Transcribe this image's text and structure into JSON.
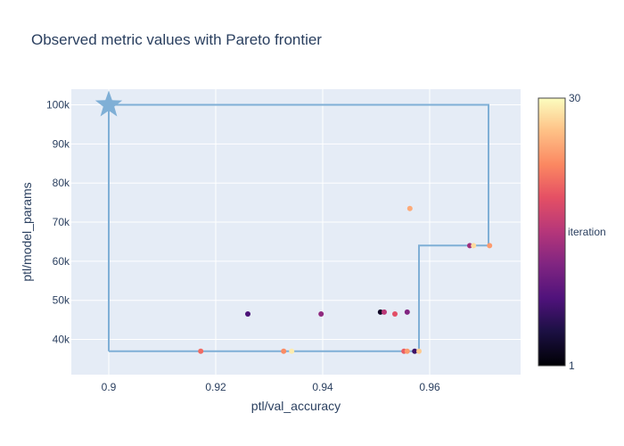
{
  "chart_data": {
    "type": "scatter",
    "title": "Observed metric values with Pareto frontier",
    "xlabel": "ptl/val_accuracy",
    "ylabel": "ptl/model_params",
    "xlim": [
      0.893,
      0.977
    ],
    "ylim": [
      31000,
      104000
    ],
    "xticks": [
      0.9,
      0.92,
      0.94,
      0.96
    ],
    "xtick_labels": [
      "0.9",
      "0.92",
      "0.94",
      "0.96"
    ],
    "yticks": [
      40000,
      50000,
      60000,
      70000,
      80000,
      90000,
      100000
    ],
    "ytick_labels": [
      "40k",
      "50k",
      "60k",
      "70k",
      "80k",
      "90k",
      "100k"
    ],
    "grid": true,
    "colorbar": {
      "title": "iteration",
      "min": 1,
      "max": 30,
      "min_label": "1",
      "max_label": "30"
    },
    "reference_point": {
      "x": 0.9,
      "y": 100000
    },
    "frontier": {
      "x": [
        0.9,
        0.958,
        0.958,
        0.971,
        0.971,
        0.9,
        0.9
      ],
      "y": [
        37000,
        37000,
        64000,
        64000,
        100000,
        100000,
        37000
      ]
    },
    "points": [
      {
        "x": 0.926,
        "y": 46500,
        "iteration": 8
      },
      {
        "x": 0.9397,
        "y": 46500,
        "iteration": 13
      },
      {
        "x": 0.9508,
        "y": 47000,
        "iteration": 3
      },
      {
        "x": 0.9515,
        "y": 47000,
        "iteration": 16
      },
      {
        "x": 0.9535,
        "y": 46500,
        "iteration": 19
      },
      {
        "x": 0.9558,
        "y": 47000,
        "iteration": 12
      },
      {
        "x": 0.9172,
        "y": 37000,
        "iteration": 21
      },
      {
        "x": 0.9327,
        "y": 37000,
        "iteration": 23
      },
      {
        "x": 0.9342,
        "y": 37000,
        "iteration": 29
      },
      {
        "x": 0.9552,
        "y": 37000,
        "iteration": 20
      },
      {
        "x": 0.9558,
        "y": 37000,
        "iteration": 24
      },
      {
        "x": 0.9572,
        "y": 37000,
        "iteration": 7
      },
      {
        "x": 0.958,
        "y": 37000,
        "iteration": 27
      },
      {
        "x": 0.9563,
        "y": 73500,
        "iteration": 25
      },
      {
        "x": 0.9675,
        "y": 64000,
        "iteration": 14
      },
      {
        "x": 0.9682,
        "y": 64000,
        "iteration": 28
      },
      {
        "x": 0.9712,
        "y": 64000,
        "iteration": 24
      }
    ],
    "colors": {
      "frontier": "#7fafd6",
      "plot_bg": "#e5ecf6",
      "grid": "#ffffff",
      "text": "#2a3f5f"
    }
  }
}
